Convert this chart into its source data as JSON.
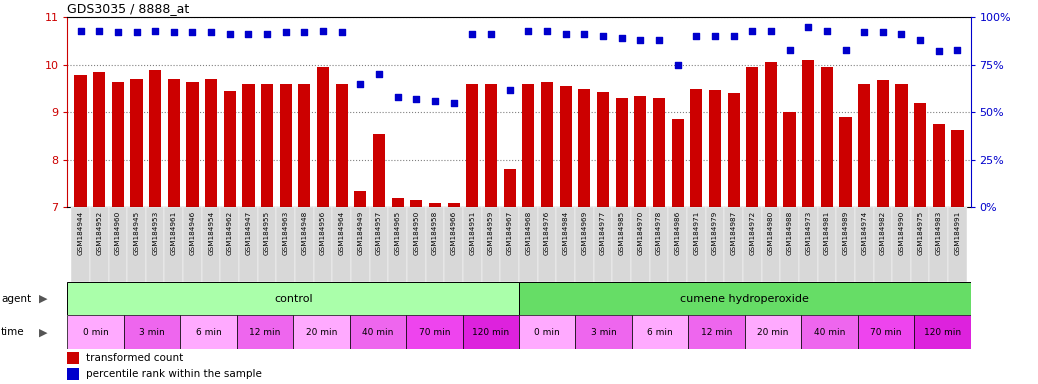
{
  "title": "GDS3035 / 8888_at",
  "bar_color": "#cc0000",
  "dot_color": "#0000cc",
  "ylim_left": [
    7,
    11
  ],
  "ylim_right": [
    0,
    100
  ],
  "yticks_left": [
    7,
    8,
    9,
    10,
    11
  ],
  "yticks_right": [
    0,
    25,
    50,
    75,
    100
  ],
  "figure_bg": "#ffffff",
  "plot_bg": "#ffffff",
  "xtick_bg": "#d8d8d8",
  "categories": [
    "GSM184944",
    "GSM184952",
    "GSM184960",
    "GSM184945",
    "GSM184953",
    "GSM184961",
    "GSM184946",
    "GSM184954",
    "GSM184962",
    "GSM184947",
    "GSM184955",
    "GSM184963",
    "GSM184948",
    "GSM184956",
    "GSM184964",
    "GSM184949",
    "GSM184957",
    "GSM184965",
    "GSM184950",
    "GSM184958",
    "GSM184966",
    "GSM184951",
    "GSM184959",
    "GSM184967",
    "GSM184968",
    "GSM184976",
    "GSM184984",
    "GSM184969",
    "GSM184977",
    "GSM184985",
    "GSM184970",
    "GSM184978",
    "GSM184986",
    "GSM184971",
    "GSM184979",
    "GSM184987",
    "GSM184972",
    "GSM184980",
    "GSM184988",
    "GSM184973",
    "GSM184981",
    "GSM184989",
    "GSM184974",
    "GSM184982",
    "GSM184990",
    "GSM184975",
    "GSM184983",
    "GSM184991"
  ],
  "bar_values": [
    9.78,
    9.85,
    9.63,
    9.7,
    9.9,
    9.7,
    9.63,
    9.7,
    9.45,
    9.6,
    9.6,
    9.6,
    9.6,
    9.95,
    9.6,
    7.35,
    8.55,
    7.2,
    7.15,
    7.1,
    7.1,
    9.6,
    9.6,
    7.8,
    9.6,
    9.63,
    9.55,
    9.5,
    9.43,
    9.3,
    9.35,
    9.3,
    8.85,
    9.5,
    9.48,
    9.4,
    9.95,
    10.05,
    9.0,
    10.1,
    9.95,
    8.9,
    9.6,
    9.68,
    9.6,
    9.2,
    8.75,
    8.63
  ],
  "dot_values": [
    93,
    93,
    92,
    92,
    93,
    92,
    92,
    92,
    91,
    91,
    91,
    92,
    92,
    93,
    92,
    65,
    70,
    58,
    57,
    56,
    55,
    91,
    91,
    62,
    93,
    93,
    91,
    91,
    90,
    89,
    88,
    88,
    75,
    90,
    90,
    90,
    93,
    93,
    83,
    95,
    93,
    83,
    92,
    92,
    91,
    88,
    82,
    83
  ],
  "agent_groups": [
    {
      "label": "control",
      "start": 0,
      "end": 24,
      "color": "#aaffaa"
    },
    {
      "label": "cumene hydroperoxide",
      "start": 24,
      "end": 48,
      "color": "#66dd66"
    }
  ],
  "time_groups": [
    {
      "label": "0 min",
      "start": 0,
      "end": 3,
      "color": "#ffaaff"
    },
    {
      "label": "3 min",
      "start": 3,
      "end": 6,
      "color": "#ee66ee"
    },
    {
      "label": "6 min",
      "start": 6,
      "end": 9,
      "color": "#ffaaff"
    },
    {
      "label": "12 min",
      "start": 9,
      "end": 12,
      "color": "#ee66ee"
    },
    {
      "label": "20 min",
      "start": 12,
      "end": 15,
      "color": "#ffaaff"
    },
    {
      "label": "40 min",
      "start": 15,
      "end": 18,
      "color": "#ee66ee"
    },
    {
      "label": "70 min",
      "start": 18,
      "end": 21,
      "color": "#ee44ee"
    },
    {
      "label": "120 min",
      "start": 21,
      "end": 24,
      "color": "#dd22dd"
    },
    {
      "label": "0 min",
      "start": 24,
      "end": 27,
      "color": "#ffaaff"
    },
    {
      "label": "3 min",
      "start": 27,
      "end": 30,
      "color": "#ee66ee"
    },
    {
      "label": "6 min",
      "start": 30,
      "end": 33,
      "color": "#ffaaff"
    },
    {
      "label": "12 min",
      "start": 33,
      "end": 36,
      "color": "#ee66ee"
    },
    {
      "label": "20 min",
      "start": 36,
      "end": 39,
      "color": "#ffaaff"
    },
    {
      "label": "40 min",
      "start": 39,
      "end": 42,
      "color": "#ee66ee"
    },
    {
      "label": "70 min",
      "start": 42,
      "end": 45,
      "color": "#ee44ee"
    },
    {
      "label": "120 min",
      "start": 45,
      "end": 48,
      "color": "#dd22dd"
    }
  ],
  "legend_items": [
    {
      "label": "transformed count",
      "color": "#cc0000"
    },
    {
      "label": "percentile rank within the sample",
      "color": "#0000cc"
    }
  ]
}
